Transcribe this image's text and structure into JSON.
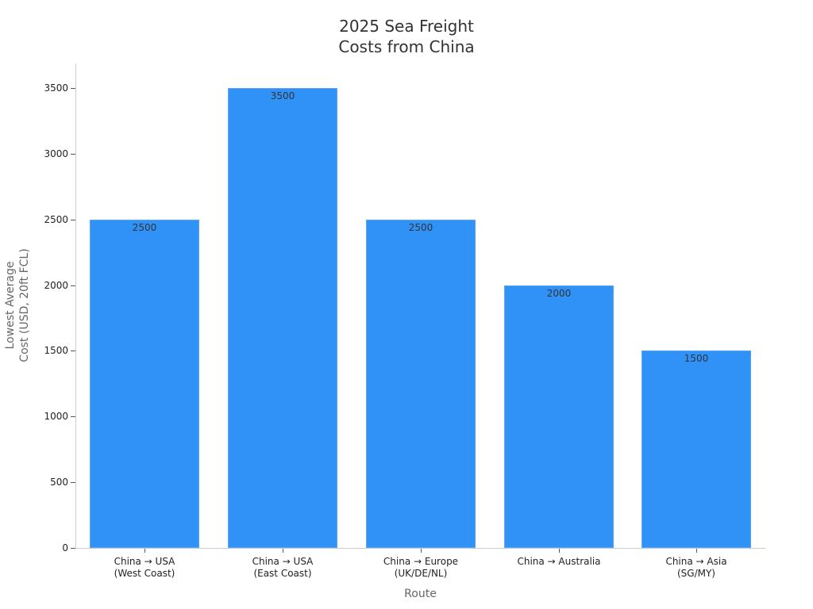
{
  "chart_data": {
    "type": "bar",
    "title": "2025 Sea Freight\nCosts from China",
    "title_lines": [
      "2025 Sea Freight",
      "Costs from China"
    ],
    "xlabel": "Route",
    "ylabel": "Lowest Average\nCost (USD, 20ft FCL)",
    "categories": [
      "China → USA\n(West Coast)",
      "China → USA\n(East Coast)",
      "China → Europe\n(UK/DE/NL)",
      "China → Australia",
      "China → Asia\n(SG/MY)"
    ],
    "values": [
      2500,
      3500,
      2500,
      2000,
      1500
    ],
    "data_labels": [
      "2500",
      "3500",
      "2500",
      "2000",
      "1500"
    ],
    "yticks": [
      0,
      500,
      1000,
      1500,
      2000,
      2500,
      3000,
      3500
    ],
    "ylim": [
      0,
      3680
    ],
    "grid": false,
    "legend": null,
    "bar_color": "#3092f7"
  }
}
